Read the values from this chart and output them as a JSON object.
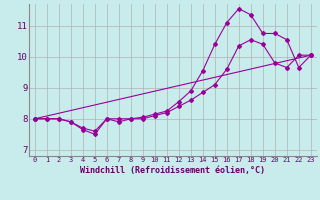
{
  "xlabel": "Windchill (Refroidissement éolien,°C)",
  "bg_color": "#c8ecec",
  "grid_color": "#b0b0b0",
  "line_color": "#990099",
  "xlim": [
    -0.5,
    23.5
  ],
  "ylim": [
    6.8,
    11.7
  ],
  "xticks": [
    0,
    1,
    2,
    3,
    4,
    5,
    6,
    7,
    8,
    9,
    10,
    11,
    12,
    13,
    14,
    15,
    16,
    17,
    18,
    19,
    20,
    21,
    22,
    23
  ],
  "yticks": [
    7,
    8,
    9,
    10,
    11
  ],
  "line1_x": [
    0,
    1,
    2,
    3,
    4,
    5,
    6,
    7,
    8,
    9,
    10,
    11,
    12,
    13,
    14,
    15,
    16,
    17,
    18,
    19,
    20,
    21,
    22,
    23
  ],
  "line1_y": [
    8.0,
    8.0,
    8.0,
    7.9,
    7.7,
    7.6,
    8.0,
    8.0,
    8.0,
    8.0,
    8.1,
    8.2,
    8.4,
    8.6,
    8.85,
    9.1,
    9.6,
    10.35,
    10.55,
    10.4,
    9.8,
    9.65,
    10.05,
    10.05
  ],
  "line2_x": [
    0,
    1,
    2,
    3,
    4,
    5,
    6,
    7,
    8,
    9,
    10,
    11,
    12,
    13,
    14,
    15,
    16,
    17,
    18,
    19,
    20,
    21,
    22,
    23
  ],
  "line2_y": [
    8.0,
    8.0,
    8.0,
    7.9,
    7.65,
    7.5,
    8.0,
    7.9,
    8.0,
    8.05,
    8.15,
    8.25,
    8.55,
    8.9,
    9.55,
    10.4,
    11.1,
    11.55,
    11.35,
    10.75,
    10.75,
    10.55,
    9.65,
    10.05
  ],
  "line3_x": [
    0,
    23
  ],
  "line3_y": [
    8.0,
    10.05
  ],
  "tick_fontsize": 5.0,
  "xlabel_fontsize": 6.0,
  "ytick_fontsize": 6.5
}
